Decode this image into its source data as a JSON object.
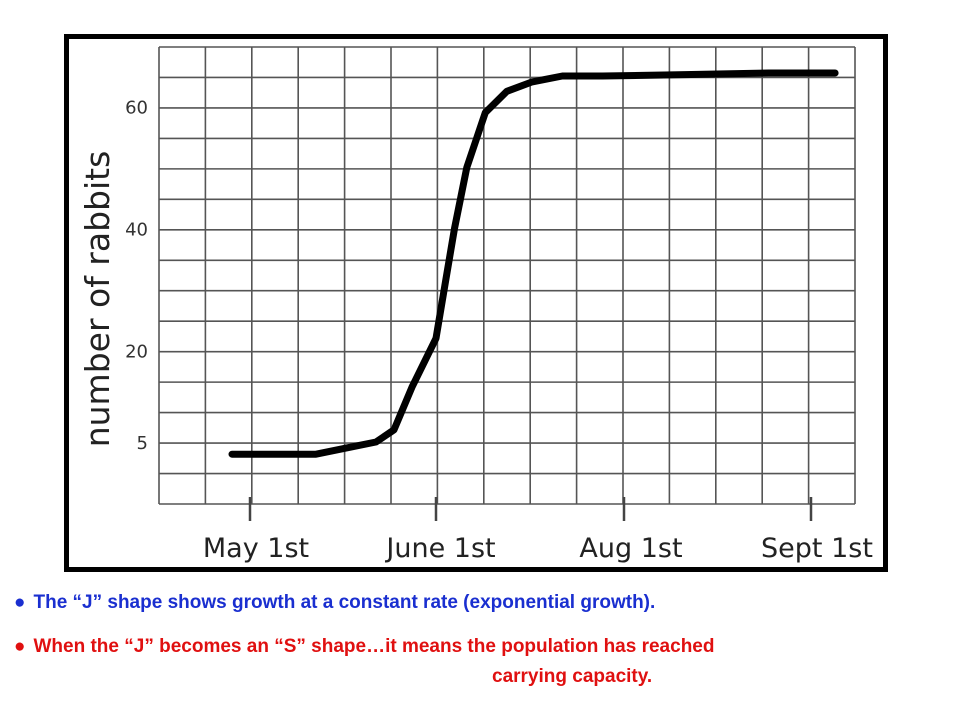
{
  "chart_data": {
    "type": "line",
    "title": "",
    "xlabel": "",
    "ylabel": "number of rabbits",
    "x_tick_labels": [
      "May 1st",
      "June 1st",
      "Aug 1st",
      "Sept 1st"
    ],
    "y_tick_labels": [
      "5",
      "20",
      "40",
      "60"
    ],
    "grid": true,
    "series": [
      {
        "color": "#000000",
        "x": [
          "Apr 28",
          "May 7",
          "May 12",
          "May 17",
          "May 22",
          "May 25",
          "May 28",
          "June 1",
          "June 4",
          "June 7",
          "June 11",
          "June 17",
          "June 24",
          "July 2",
          "July 12",
          "July 25",
          "Aug 10",
          "Aug 25",
          "Sept 5"
        ],
        "values": [
          3,
          3,
          3,
          4,
          5,
          7,
          14,
          22,
          31,
          40,
          50,
          59,
          62.5,
          64,
          65,
          65,
          65.2,
          65.5,
          65.5
        ]
      }
    ]
  },
  "notes": {
    "bullet": "●",
    "line1": "The “J” shape shows growth at a constant rate (exponential growth).",
    "line2a": "When the “J” becomes an “S” shape…it means the population has reached",
    "line2b": "carrying capacity."
  }
}
